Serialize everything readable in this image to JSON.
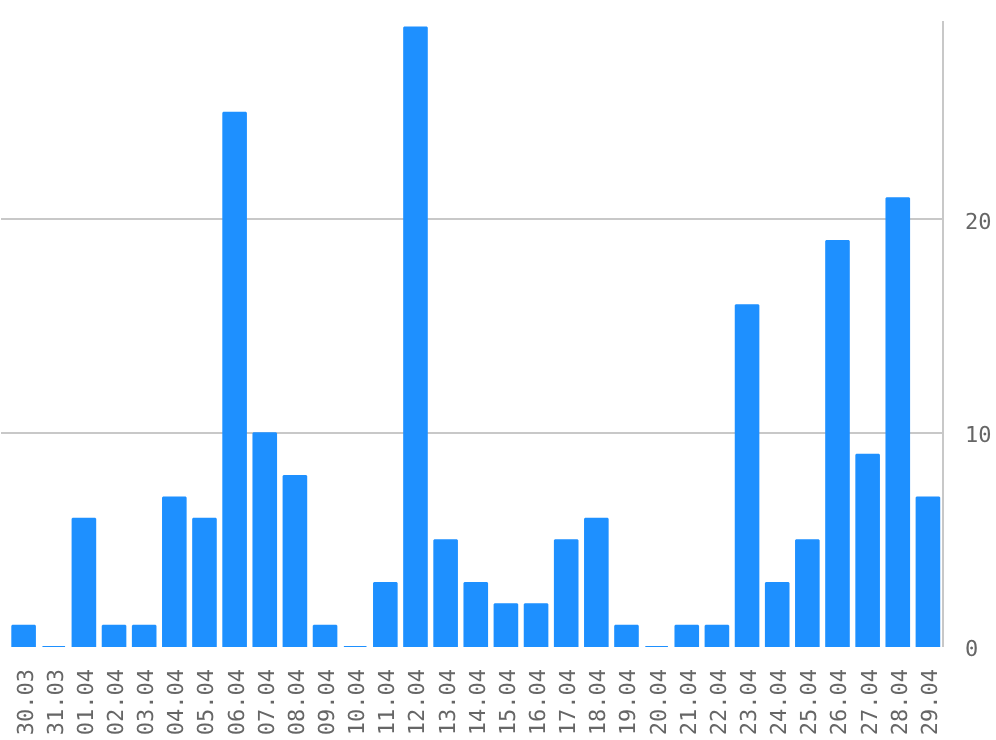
{
  "chart_data": {
    "type": "bar",
    "categories": [
      "30.03",
      "31.03",
      "01.04",
      "02.04",
      "03.04",
      "04.04",
      "05.04",
      "06.04",
      "07.04",
      "08.04",
      "09.04",
      "10.04",
      "11.04",
      "12.04",
      "13.04",
      "14.04",
      "15.04",
      "16.04",
      "17.04",
      "18.04",
      "19.04",
      "20.04",
      "21.04",
      "22.04",
      "23.04",
      "24.04",
      "25.04",
      "26.04",
      "27.04",
      "28.04",
      "29.04"
    ],
    "values": [
      1,
      0,
      6,
      1,
      1,
      7,
      6,
      25,
      10,
      8,
      1,
      0,
      3,
      29,
      5,
      3,
      2,
      2,
      5,
      6,
      1,
      0,
      1,
      1,
      16,
      3,
      5,
      19,
      9,
      21,
      7
    ],
    "color": "#1e90ff",
    "ylim": [
      0,
      29.3
    ],
    "yticks": [
      0,
      10,
      20
    ],
    "grid": "y"
  }
}
